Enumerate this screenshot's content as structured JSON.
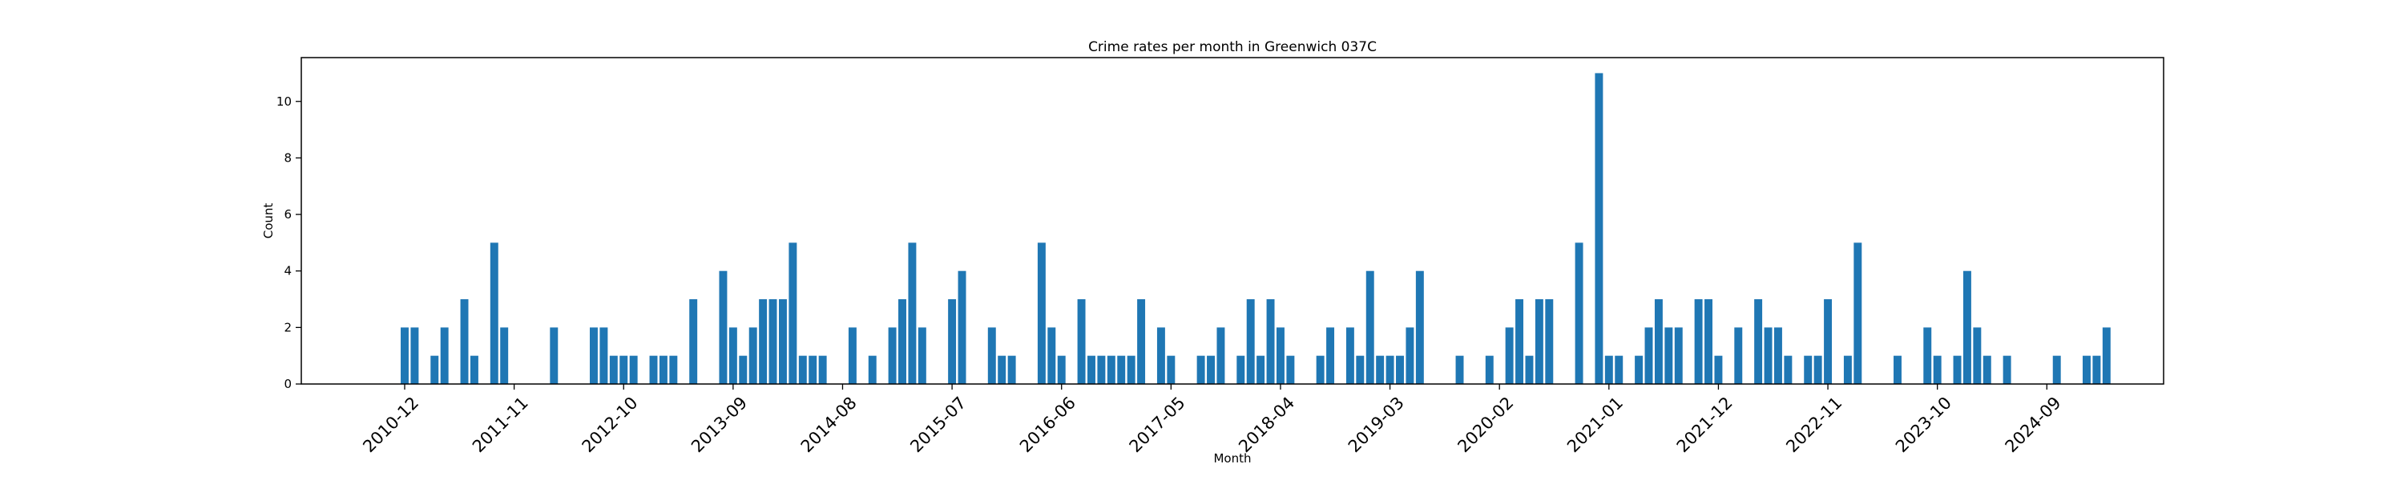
{
  "chart_data": {
    "type": "bar",
    "title": "Crime rates per month in Greenwich 037C",
    "xlabel": "Month",
    "ylabel": "Count",
    "ylim": [
      0,
      11.55
    ],
    "yticks": [
      0,
      2,
      4,
      6,
      8,
      10
    ],
    "xtick_labels": [
      "2010-12",
      "2011-11",
      "2012-10",
      "2013-09",
      "2014-08",
      "2015-07",
      "2016-06",
      "2017-05",
      "2018-04",
      "2019-03",
      "2020-02",
      "2021-01",
      "2021-12",
      "2022-11",
      "2023-10",
      "2024-09"
    ],
    "grid": false,
    "bar_color": "#1f77b4",
    "points": [
      [
        "2010-12",
        2
      ],
      [
        "2011-01",
        2
      ],
      [
        "2011-03",
        1
      ],
      [
        "2011-04",
        2
      ],
      [
        "2011-06",
        3
      ],
      [
        "2011-07",
        1
      ],
      [
        "2011-09",
        5
      ],
      [
        "2011-10",
        2
      ],
      [
        "2012-03",
        2
      ],
      [
        "2012-07",
        2
      ],
      [
        "2012-08",
        2
      ],
      [
        "2012-09",
        1
      ],
      [
        "2012-10",
        1
      ],
      [
        "2012-11",
        1
      ],
      [
        "2013-01",
        1
      ],
      [
        "2013-02",
        1
      ],
      [
        "2013-03",
        1
      ],
      [
        "2013-05",
        3
      ],
      [
        "2013-08",
        4
      ],
      [
        "2013-09",
        2
      ],
      [
        "2013-10",
        1
      ],
      [
        "2013-11",
        2
      ],
      [
        "2013-12",
        3
      ],
      [
        "2014-01",
        3
      ],
      [
        "2014-02",
        3
      ],
      [
        "2014-03",
        5
      ],
      [
        "2014-04",
        1
      ],
      [
        "2014-05",
        1
      ],
      [
        "2014-06",
        1
      ],
      [
        "2014-09",
        2
      ],
      [
        "2014-11",
        1
      ],
      [
        "2015-01",
        2
      ],
      [
        "2015-02",
        3
      ],
      [
        "2015-03",
        5
      ],
      [
        "2015-04",
        2
      ],
      [
        "2015-07",
        3
      ],
      [
        "2015-08",
        4
      ],
      [
        "2015-11",
        2
      ],
      [
        "2015-12",
        1
      ],
      [
        "2016-01",
        1
      ],
      [
        "2016-04",
        5
      ],
      [
        "2016-05",
        2
      ],
      [
        "2016-06",
        1
      ],
      [
        "2016-08",
        3
      ],
      [
        "2016-09",
        1
      ],
      [
        "2016-10",
        1
      ],
      [
        "2016-11",
        1
      ],
      [
        "2016-12",
        1
      ],
      [
        "2017-01",
        1
      ],
      [
        "2017-02",
        3
      ],
      [
        "2017-04",
        2
      ],
      [
        "2017-05",
        1
      ],
      [
        "2017-08",
        1
      ],
      [
        "2017-09",
        1
      ],
      [
        "2017-10",
        2
      ],
      [
        "2017-12",
        1
      ],
      [
        "2018-01",
        3
      ],
      [
        "2018-02",
        1
      ],
      [
        "2018-03",
        3
      ],
      [
        "2018-04",
        2
      ],
      [
        "2018-05",
        1
      ],
      [
        "2018-08",
        1
      ],
      [
        "2018-09",
        2
      ],
      [
        "2018-11",
        2
      ],
      [
        "2018-12",
        1
      ],
      [
        "2019-01",
        4
      ],
      [
        "2019-02",
        1
      ],
      [
        "2019-03",
        1
      ],
      [
        "2019-04",
        1
      ],
      [
        "2019-05",
        2
      ],
      [
        "2019-06",
        4
      ],
      [
        "2019-10",
        1
      ],
      [
        "2020-01",
        1
      ],
      [
        "2020-03",
        2
      ],
      [
        "2020-04",
        3
      ],
      [
        "2020-05",
        1
      ],
      [
        "2020-06",
        3
      ],
      [
        "2020-07",
        3
      ],
      [
        "2020-10",
        5
      ],
      [
        "2020-12",
        11
      ],
      [
        "2021-01",
        1
      ],
      [
        "2021-02",
        1
      ],
      [
        "2021-04",
        1
      ],
      [
        "2021-05",
        2
      ],
      [
        "2021-06",
        3
      ],
      [
        "2021-07",
        2
      ],
      [
        "2021-08",
        2
      ],
      [
        "2021-10",
        3
      ],
      [
        "2021-11",
        3
      ],
      [
        "2021-12",
        1
      ],
      [
        "2022-02",
        2
      ],
      [
        "2022-04",
        3
      ],
      [
        "2022-05",
        2
      ],
      [
        "2022-06",
        2
      ],
      [
        "2022-07",
        1
      ],
      [
        "2022-09",
        1
      ],
      [
        "2022-10",
        1
      ],
      [
        "2022-11",
        3
      ],
      [
        "2023-01",
        1
      ],
      [
        "2023-02",
        5
      ],
      [
        "2023-06",
        1
      ],
      [
        "2023-09",
        2
      ],
      [
        "2023-10",
        1
      ],
      [
        "2023-12",
        1
      ],
      [
        "2024-01",
        4
      ],
      [
        "2024-02",
        2
      ],
      [
        "2024-03",
        1
      ],
      [
        "2024-05",
        1
      ],
      [
        "2024-10",
        1
      ],
      [
        "2025-01",
        1
      ],
      [
        "2025-02",
        1
      ],
      [
        "2025-03",
        2
      ]
    ]
  }
}
